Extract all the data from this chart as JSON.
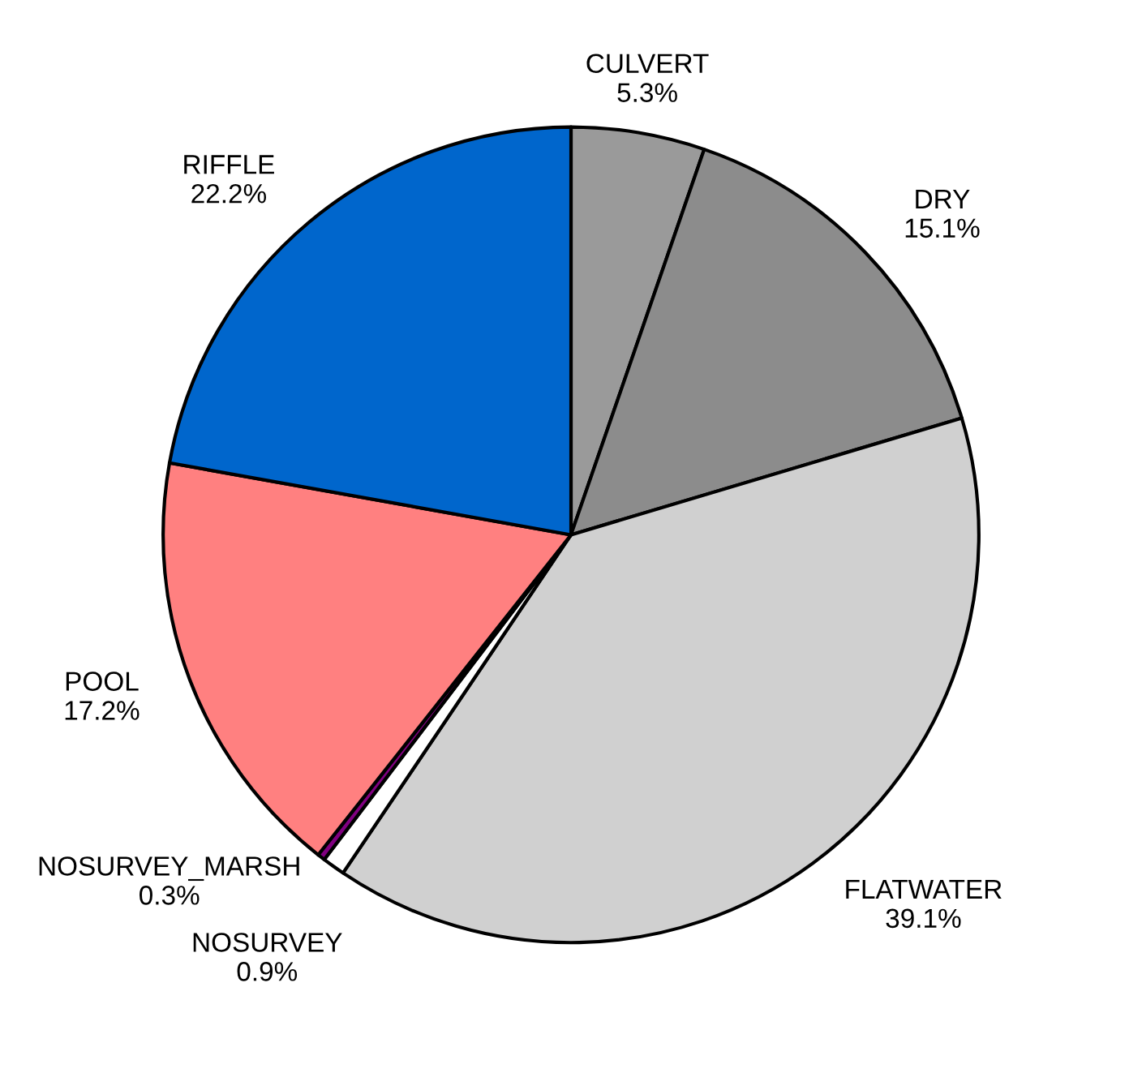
{
  "chart_data": {
    "type": "pie",
    "categories": [
      "CULVERT",
      "DRY",
      "FLATWATER",
      "NOSURVEY",
      "NOSURVEY_MARSH",
      "POOL",
      "RIFFLE"
    ],
    "values": [
      5.3,
      15.1,
      39.1,
      0.9,
      0.3,
      17.2,
      22.2
    ],
    "value_labels": [
      "5.3%",
      "15.1%",
      "39.1%",
      "0.9%",
      "0.3%",
      "17.2%",
      "22.2%"
    ],
    "colors": [
      "#9a9a9a",
      "#8c8c8c",
      "#d0d0d0",
      "#ffffff",
      "#800080",
      "#ff8080",
      "#0066cc"
    ]
  }
}
